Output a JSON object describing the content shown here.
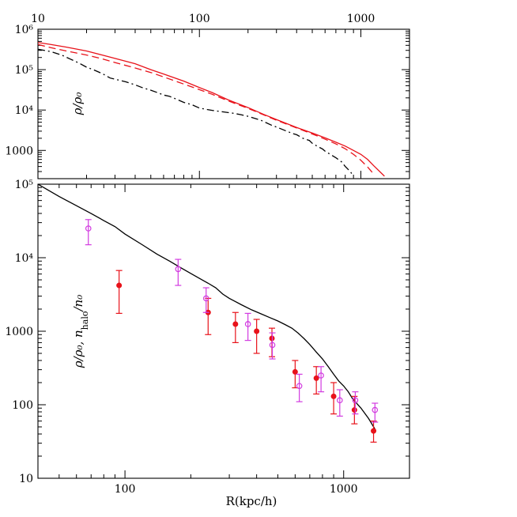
{
  "colors": {
    "red": "#e8121a",
    "magenta": "#d23be0",
    "black": "#000000"
  },
  "chart_data": [
    {
      "type": "line",
      "log_x": true,
      "log_y": true,
      "xlim": [
        10,
        2000
      ],
      "ylim": [
        200,
        1000000
      ],
      "x_ticks": [
        10,
        100,
        1000
      ],
      "x_tick_labels": [
        "10",
        "100",
        "1000"
      ],
      "x_tick_position": "top",
      "y_ticks": [
        1000,
        10000,
        100000,
        1000000
      ],
      "y_tick_labels": [
        "1000",
        "10⁴",
        "10⁵",
        "10⁶"
      ],
      "ylabel": "ρ/ρ₀",
      "series": [
        {
          "style": "solid",
          "color": "red",
          "x": [
            10,
            12,
            15,
            20,
            25,
            30,
            40,
            50,
            60,
            80,
            100,
            120,
            150,
            200,
            250,
            300,
            400,
            500,
            600,
            700,
            800,
            900,
            1000,
            1100,
            1200,
            1400
          ],
          "y": [
            470000,
            420000,
            360000,
            290000,
            230000,
            190000,
            140000,
            100000,
            78000,
            52000,
            36000,
            27000,
            18000,
            11500,
            7800,
            5800,
            3700,
            2700,
            2050,
            1600,
            1280,
            1000,
            800,
            600,
            420,
            230
          ]
        },
        {
          "style": "dashed",
          "color": "red",
          "x": [
            10,
            12,
            15,
            20,
            25,
            30,
            40,
            50,
            60,
            80,
            100,
            120,
            150,
            200,
            250,
            300,
            400,
            500,
            600,
            700,
            800,
            900,
            1000,
            1100,
            1200
          ],
          "y": [
            420000,
            350000,
            290000,
            230000,
            185000,
            150000,
            110000,
            85000,
            66000,
            44000,
            32000,
            24500,
            17000,
            11000,
            7600,
            5600,
            3600,
            2550,
            1900,
            1450,
            1100,
            800,
            570,
            390,
            260
          ]
        },
        {
          "style": "dashdot",
          "color": "black",
          "x": [
            10,
            12,
            14,
            16,
            18,
            20,
            22,
            25,
            28,
            30,
            35,
            40,
            45,
            50,
            55,
            60,
            65,
            70,
            80,
            90,
            100,
            110,
            120,
            140,
            160,
            180,
            200,
            240,
            280,
            300,
            340,
            380,
            400,
            440,
            480,
            500,
            540,
            580,
            600,
            640,
            700,
            760,
            800,
            860,
            900
          ],
          "y": [
            320000,
            280000,
            230000,
            180000,
            145000,
            115000,
            100000,
            80000,
            62000,
            58000,
            50000,
            42000,
            35000,
            31000,
            27000,
            23500,
            22000,
            19500,
            15500,
            13500,
            11200,
            10400,
            9800,
            9000,
            8400,
            7700,
            7000,
            5600,
            4200,
            3800,
            3100,
            2600,
            2450,
            1980,
            1760,
            1500,
            1250,
            1080,
            960,
            820,
            660,
            520,
            400,
            300,
            230
          ]
        }
      ]
    },
    {
      "type": "scatter",
      "log_x": true,
      "log_y": true,
      "xlim": [
        40,
        2000
      ],
      "ylim": [
        10,
        100000
      ],
      "x_ticks": [
        100,
        1000
      ],
      "x_tick_labels": [
        "100",
        "1000"
      ],
      "y_ticks": [
        10,
        100,
        1000,
        10000,
        100000
      ],
      "y_tick_labels": [
        "10",
        "100",
        "1000",
        "10⁴",
        "10⁵"
      ],
      "xlabel": "R(kpc/h)",
      "ylabel": "ρ/ρ₀,  n_halo/n₀",
      "series": [
        {
          "kind": "line",
          "style": "solid",
          "color": "black",
          "x": [
            40,
            50,
            60,
            70,
            80,
            90,
            100,
            120,
            140,
            160,
            180,
            200,
            220,
            240,
            260,
            280,
            300,
            340,
            380,
            420,
            460,
            500,
            540,
            580,
            620,
            660,
            700,
            750,
            800,
            850,
            900,
            950,
            1000,
            1050,
            1100,
            1200,
            1300,
            1400
          ],
          "y": [
            100000,
            68000,
            51000,
            40000,
            32000,
            26500,
            21000,
            15000,
            11200,
            9000,
            7300,
            6100,
            5200,
            4500,
            3900,
            3200,
            2800,
            2300,
            1950,
            1720,
            1530,
            1380,
            1230,
            1100,
            940,
            790,
            660,
            520,
            420,
            330,
            260,
            210,
            180,
            150,
            120,
            90,
            65,
            45
          ]
        },
        {
          "kind": "points",
          "marker": "filled-circle",
          "color": "red",
          "x": [
            94,
            240,
            320,
            400,
            470,
            600,
            750,
            900,
            1120,
            1370
          ],
          "y": [
            4200,
            1800,
            1250,
            1000,
            800,
            280,
            230,
            130,
            85,
            44
          ],
          "err_low": [
            1750,
            900,
            700,
            500,
            450,
            170,
            140,
            75,
            55,
            31
          ],
          "err_high": [
            6700,
            2800,
            1800,
            1450,
            1100,
            400,
            330,
            200,
            130,
            60
          ]
        },
        {
          "kind": "points",
          "marker": "open-circle",
          "color": "magenta",
          "x": [
            68,
            175,
            235,
            365,
            472,
            627,
            788,
            960,
            1130,
            1390
          ],
          "y": [
            25000,
            7000,
            2800,
            1250,
            650,
            180,
            250,
            115,
            115,
            85
          ],
          "err_low": [
            15000,
            4200,
            1800,
            750,
            420,
            110,
            150,
            70,
            75,
            58
          ],
          "err_high": [
            33000,
            9500,
            3900,
            1750,
            950,
            260,
            330,
            160,
            150,
            105
          ]
        }
      ]
    }
  ]
}
